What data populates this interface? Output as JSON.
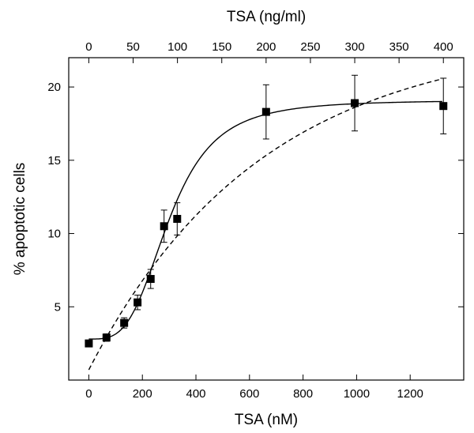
{
  "chart_data": {
    "type": "scatter",
    "xlabel_bottom": "TSA (nM)",
    "xlabel_top": "TSA (ng/ml)",
    "ylabel": "% apoptotic cells",
    "xlim": [
      -75,
      1400
    ],
    "ylim": [
      0,
      22
    ],
    "x_ticks": [
      "0",
      "200",
      "400",
      "600",
      "800",
      "1000",
      "1200"
    ],
    "x_tick_values": [
      0,
      200,
      400,
      600,
      800,
      1000,
      1200
    ],
    "top_ticks": [
      "0",
      "50",
      "100",
      "150",
      "200",
      "250",
      "300",
      "350",
      "400"
    ],
    "top_tick_values": [
      0,
      50,
      100,
      150,
      200,
      250,
      300,
      350,
      400
    ],
    "top_to_nM_factor": 3.31,
    "y_ticks": [
      "5",
      "10",
      "15",
      "20"
    ],
    "y_tick_values": [
      5,
      10,
      15,
      20
    ],
    "grid": false,
    "series": [
      {
        "marker": "square",
        "color": "#000000",
        "points": [
          {
            "x": 0,
            "y": 2.5,
            "err": 0
          },
          {
            "x": 66,
            "y": 2.9,
            "err": 0.25
          },
          {
            "x": 132,
            "y": 3.9,
            "err": 0.35
          },
          {
            "x": 182,
            "y": 5.3,
            "err": 0.5
          },
          {
            "x": 231,
            "y": 6.9,
            "err": 0.65
          },
          {
            "x": 281,
            "y": 10.5,
            "err": 1.1
          },
          {
            "x": 330,
            "y": 11.0,
            "err": 1.1
          },
          {
            "x": 662,
            "y": 18.3,
            "err": 1.85
          },
          {
            "x": 993,
            "y": 18.9,
            "err": 1.9
          },
          {
            "x": 1324,
            "y": 18.7,
            "err": 1.9
          }
        ]
      }
    ],
    "fits": [
      {
        "style": "solid",
        "model": "sigmoid",
        "bottom": 2.8,
        "top": 19.1,
        "ec50": 300,
        "hill": 3.5,
        "x_from": 0,
        "x_to": 1320
      },
      {
        "style": "dashed",
        "model": "exponential",
        "y0": 0.7,
        "plateau": 23.5,
        "k": 0.00155,
        "x_from": 0,
        "x_to": 1320
      }
    ]
  }
}
